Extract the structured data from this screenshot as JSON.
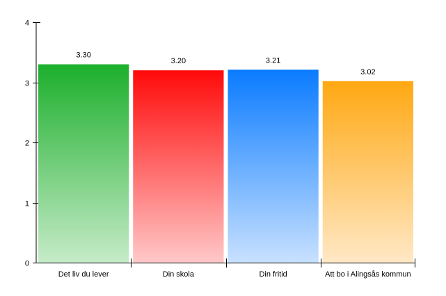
{
  "chart_data": {
    "type": "bar",
    "categories": [
      "Det liv du lever",
      "Din skola",
      "Din fritid",
      "Att bo i Alingsås kommun"
    ],
    "values": [
      3.3,
      3.2,
      3.21,
      3.02
    ],
    "data_labels": [
      "3.30",
      "3.20",
      "3.21",
      "3.02"
    ],
    "ylim": [
      0,
      4
    ],
    "yticks": [
      "0",
      "1",
      "2",
      "3",
      "4"
    ],
    "grid": false,
    "bar_colors": [
      {
        "top": "#1caf2c",
        "bottom": "#c6ebc8"
      },
      {
        "top": "#ff0a0a",
        "bottom": "#ffc8c8"
      },
      {
        "top": "#0a7bff",
        "bottom": "#c8e1ff"
      },
      {
        "top": "#ffa812",
        "bottom": "#ffe8c6"
      }
    ]
  }
}
